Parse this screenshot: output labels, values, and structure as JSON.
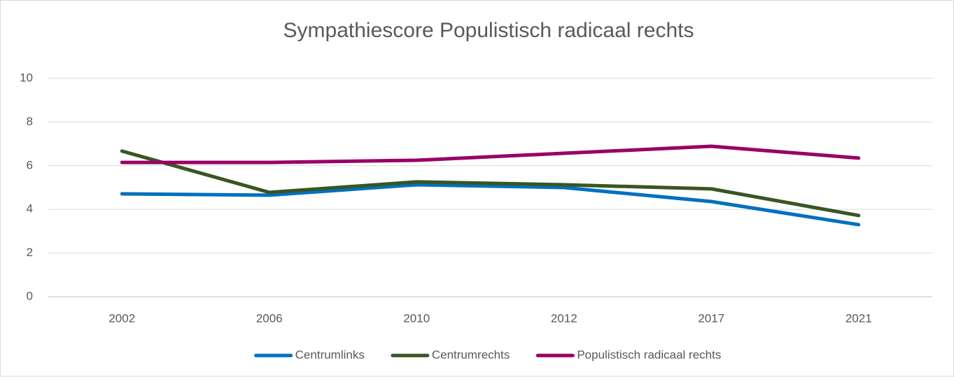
{
  "chart_data": {
    "type": "line",
    "title": "Sympathiescore Populistisch radicaal rechts",
    "categories": [
      "2002",
      "2006",
      "2010",
      "2012",
      "2017",
      "2021"
    ],
    "series": [
      {
        "name": "Centrumlinks",
        "color": "#0070c0",
        "values": [
          4.71,
          4.65,
          5.13,
          5.0,
          4.36,
          3.3
        ]
      },
      {
        "name": "Centrumrechts",
        "color": "#375623",
        "values": [
          6.67,
          4.78,
          5.26,
          5.13,
          4.94,
          3.72
        ]
      },
      {
        "name": "Populistisch radicaal rechts",
        "color": "#990066",
        "values": [
          6.15,
          6.15,
          6.25,
          6.57,
          6.89,
          6.35
        ]
      }
    ],
    "ylim": [
      0,
      10
    ],
    "yticks": [
      0,
      2,
      4,
      6,
      8,
      10
    ],
    "grid": true,
    "legend": "bottom"
  }
}
